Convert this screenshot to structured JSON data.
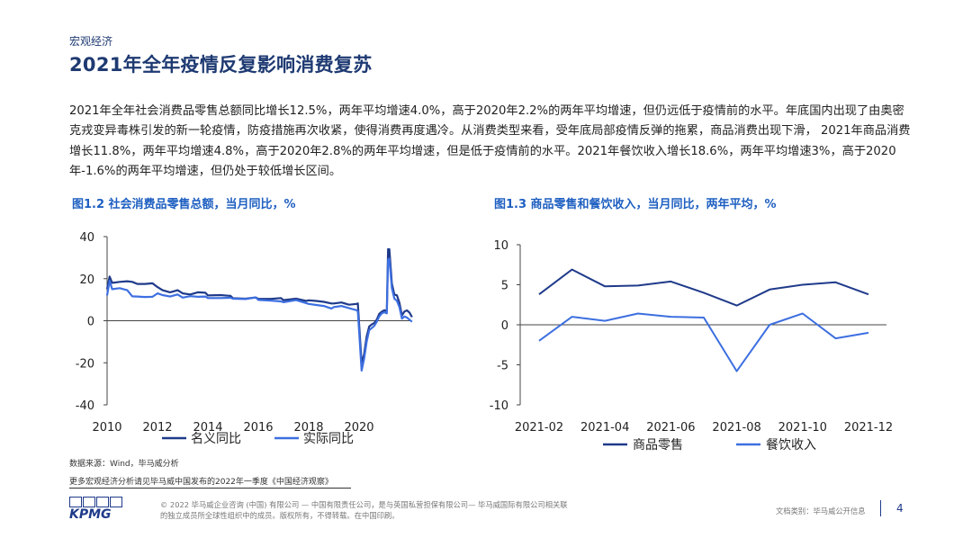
{
  "header": {
    "section": "宏观经济",
    "title": "2021年全年疫情反复影响消费复苏"
  },
  "body_text": "2021年全年社会消费品零售总额同比增长12.5%，两年平均增速4.0%，高于2020年2.2%的两年平均增速，但仍远低于疫情前的水平。年底国内出现了由奥密克戎变异毒株引发的新一轮疫情，防疫措施再次收紧，使得消费再度遇冷。从消费类型来看，受年底局部疫情反弹的拖累，商品消费出现下滑， 2021年商品消费增长11.8%，两年平均增速4.8%，高于2020年2.8%的两年平均增速，但是低于疫情前的水平。2021年餐饮收入增长18.6%，两年平均增速3%，高于2020年-1.6%的两年平均增速，但仍处于较低增长区间。",
  "colors": {
    "dark_series": "#1f3a8a",
    "light_series": "#3d6fe0",
    "title": "#1e3a72",
    "fig_title": "#1e5fc1"
  },
  "chart_data": [
    {
      "type": "line",
      "title": "图1.2 社会消费品零售总额，当月同比，%",
      "xlabel": "",
      "ylabel": "",
      "xlim": [
        2010,
        2022
      ],
      "ylim": [
        -40,
        40
      ],
      "y_ticks": [
        "40",
        "20",
        "0",
        "-20",
        "-40"
      ],
      "x_ticks": [
        "2010",
        "2012",
        "2014",
        "2016",
        "2018",
        "2020"
      ],
      "legend": "bottom",
      "series": [
        {
          "name": "名义同比",
          "color": "#1f3a8a",
          "points": [
            [
              2010.0,
              15
            ],
            [
              2010.1,
              21
            ],
            [
              2010.2,
              18
            ],
            [
              2010.5,
              18.5
            ],
            [
              2010.8,
              18.8
            ],
            [
              2011.0,
              18.5
            ],
            [
              2011.2,
              17.5
            ],
            [
              2011.5,
              17.5
            ],
            [
              2011.8,
              17.8
            ],
            [
              2012.0,
              16
            ],
            [
              2012.2,
              14.5
            ],
            [
              2012.5,
              13.5
            ],
            [
              2012.8,
              14.5
            ],
            [
              2013.0,
              13
            ],
            [
              2013.3,
              12.5
            ],
            [
              2013.6,
              13.5
            ],
            [
              2013.9,
              13.3
            ],
            [
              2014.0,
              12
            ],
            [
              2014.5,
              12.2
            ],
            [
              2014.9,
              11.8
            ],
            [
              2015.0,
              10.7
            ],
            [
              2015.5,
              10.5
            ],
            [
              2015.9,
              11.1
            ],
            [
              2016.0,
              10.4
            ],
            [
              2016.5,
              10.4
            ],
            [
              2016.9,
              10.8
            ],
            [
              2017.0,
              9.8
            ],
            [
              2017.5,
              10.5
            ],
            [
              2017.9,
              9.4
            ],
            [
              2018.0,
              9.7
            ],
            [
              2018.3,
              9.4
            ],
            [
              2018.6,
              9.0
            ],
            [
              2018.9,
              8.2
            ],
            [
              2019.0,
              8.2
            ],
            [
              2019.3,
              8.7
            ],
            [
              2019.6,
              7.6
            ],
            [
              2019.9,
              8.0
            ],
            [
              2019.95,
              8.2
            ],
            [
              2020.1,
              -20.5
            ],
            [
              2020.2,
              -15.8
            ],
            [
              2020.3,
              -7.5
            ],
            [
              2020.4,
              -2.8
            ],
            [
              2020.5,
              -1.8
            ],
            [
              2020.6,
              -1.1
            ],
            [
              2020.7,
              0.5
            ],
            [
              2020.8,
              3.3
            ],
            [
              2020.9,
              4.3
            ],
            [
              2021.0,
              5.0
            ],
            [
              2021.1,
              4.6
            ],
            [
              2021.15,
              34
            ],
            [
              2021.2,
              34
            ],
            [
              2021.3,
              17.7
            ],
            [
              2021.4,
              12.4
            ],
            [
              2021.5,
              12.1
            ],
            [
              2021.6,
              8.5
            ],
            [
              2021.7,
              2.5
            ],
            [
              2021.8,
              4.4
            ],
            [
              2021.9,
              4.9
            ],
            [
              2022.0,
              3.9
            ],
            [
              2022.1,
              1.7
            ]
          ]
        },
        {
          "name": "实际同比",
          "color": "#3d6fe0",
          "points": [
            [
              2010.0,
              12
            ],
            [
              2010.1,
              19
            ],
            [
              2010.2,
              15
            ],
            [
              2010.5,
              15.5
            ],
            [
              2010.8,
              14.5
            ],
            [
              2011.0,
              11.6
            ],
            [
              2011.2,
              11.5
            ],
            [
              2011.5,
              11.3
            ],
            [
              2011.8,
              11.4
            ],
            [
              2012.0,
              13
            ],
            [
              2012.2,
              12.2
            ],
            [
              2012.5,
              11.5
            ],
            [
              2012.8,
              12.5
            ],
            [
              2013.0,
              11
            ],
            [
              2013.3,
              11.7
            ],
            [
              2013.6,
              11.4
            ],
            [
              2013.9,
              11.5
            ],
            [
              2014.0,
              10.8
            ],
            [
              2014.5,
              10.8
            ],
            [
              2014.9,
              10.9
            ],
            [
              2015.0,
              10.5
            ],
            [
              2015.5,
              10.3
            ],
            [
              2015.9,
              11.1
            ],
            [
              2016.0,
              9.9
            ],
            [
              2016.5,
              9.6
            ],
            [
              2016.9,
              9.2
            ],
            [
              2017.0,
              8.8
            ],
            [
              2017.5,
              9.8
            ],
            [
              2017.9,
              8.4
            ],
            [
              2018.0,
              8.0
            ],
            [
              2018.3,
              7.5
            ],
            [
              2018.6,
              7.0
            ],
            [
              2018.9,
              5.8
            ],
            [
              2019.0,
              6.5
            ],
            [
              2019.3,
              7.0
            ],
            [
              2019.6,
              6.0
            ],
            [
              2019.9,
              5.0
            ],
            [
              2019.95,
              4.5
            ],
            [
              2020.1,
              -23.7
            ],
            [
              2020.2,
              -18.0
            ],
            [
              2020.3,
              -10.0
            ],
            [
              2020.4,
              -4.5
            ],
            [
              2020.5,
              -3.5
            ],
            [
              2020.6,
              -2.5
            ],
            [
              2020.7,
              -0.5
            ],
            [
              2020.8,
              2.0
            ],
            [
              2020.9,
              3.5
            ],
            [
              2021.0,
              4.0
            ],
            [
              2021.1,
              3.5
            ],
            [
              2021.15,
              29
            ],
            [
              2021.2,
              29.5
            ],
            [
              2021.3,
              15.5
            ],
            [
              2021.4,
              10.5
            ],
            [
              2021.5,
              9.5
            ],
            [
              2021.6,
              6.5
            ],
            [
              2021.7,
              1.0
            ],
            [
              2021.8,
              2.0
            ],
            [
              2021.9,
              1.5
            ],
            [
              2022.0,
              0.5
            ],
            [
              2022.1,
              -0.5
            ]
          ]
        }
      ]
    },
    {
      "type": "line",
      "title": "图1.3 商品零售和餐饮收入，当月同比，两年平均，%",
      "xlabel": "",
      "ylabel": "",
      "categories": [
        "2021-02",
        "2021-03",
        "2021-04",
        "2021-05",
        "2021-06",
        "2021-07",
        "2021-08",
        "2021-09",
        "2021-10",
        "2021-11",
        "2021-12"
      ],
      "x_ticks": [
        "2021-02",
        "2021-04",
        "2021-06",
        "2021-08",
        "2021-10",
        "2021-12"
      ],
      "y_ticks": [
        "10",
        "5",
        "0",
        "-5",
        "-10"
      ],
      "ylim": [
        -10,
        10
      ],
      "legend": "bottom",
      "series": [
        {
          "name": "商品零售",
          "color": "#1f3a8a",
          "values": [
            3.8,
            6.9,
            4.8,
            4.9,
            5.4,
            4.0,
            2.4,
            4.4,
            5.0,
            5.3,
            3.8
          ]
        },
        {
          "name": "餐饮收入",
          "color": "#3d6fe0",
          "values": [
            -2.0,
            1.0,
            0.5,
            1.4,
            1.0,
            0.9,
            -5.8,
            0.0,
            1.4,
            -1.7,
            -1.0
          ]
        }
      ]
    }
  ],
  "source": "数据来源：Wind，毕马威分析",
  "more_info": "更多宏观经济分析请见毕马威中国发布的2022年一季度《中国经济观察》",
  "footer": {
    "logo_text": "KPMG",
    "copyright": "© 2022 毕马威企业咨询 (中国) 有限公司 — 中国有限责任公司，是与英国私营担保有限公司— 毕马威国际有限公司相关联的独立成员所全球性组织中的成员。版权所有，不得转载。在中国印刷。",
    "doc_category": "文档类别：毕马威公开信息",
    "page_number": "4"
  }
}
